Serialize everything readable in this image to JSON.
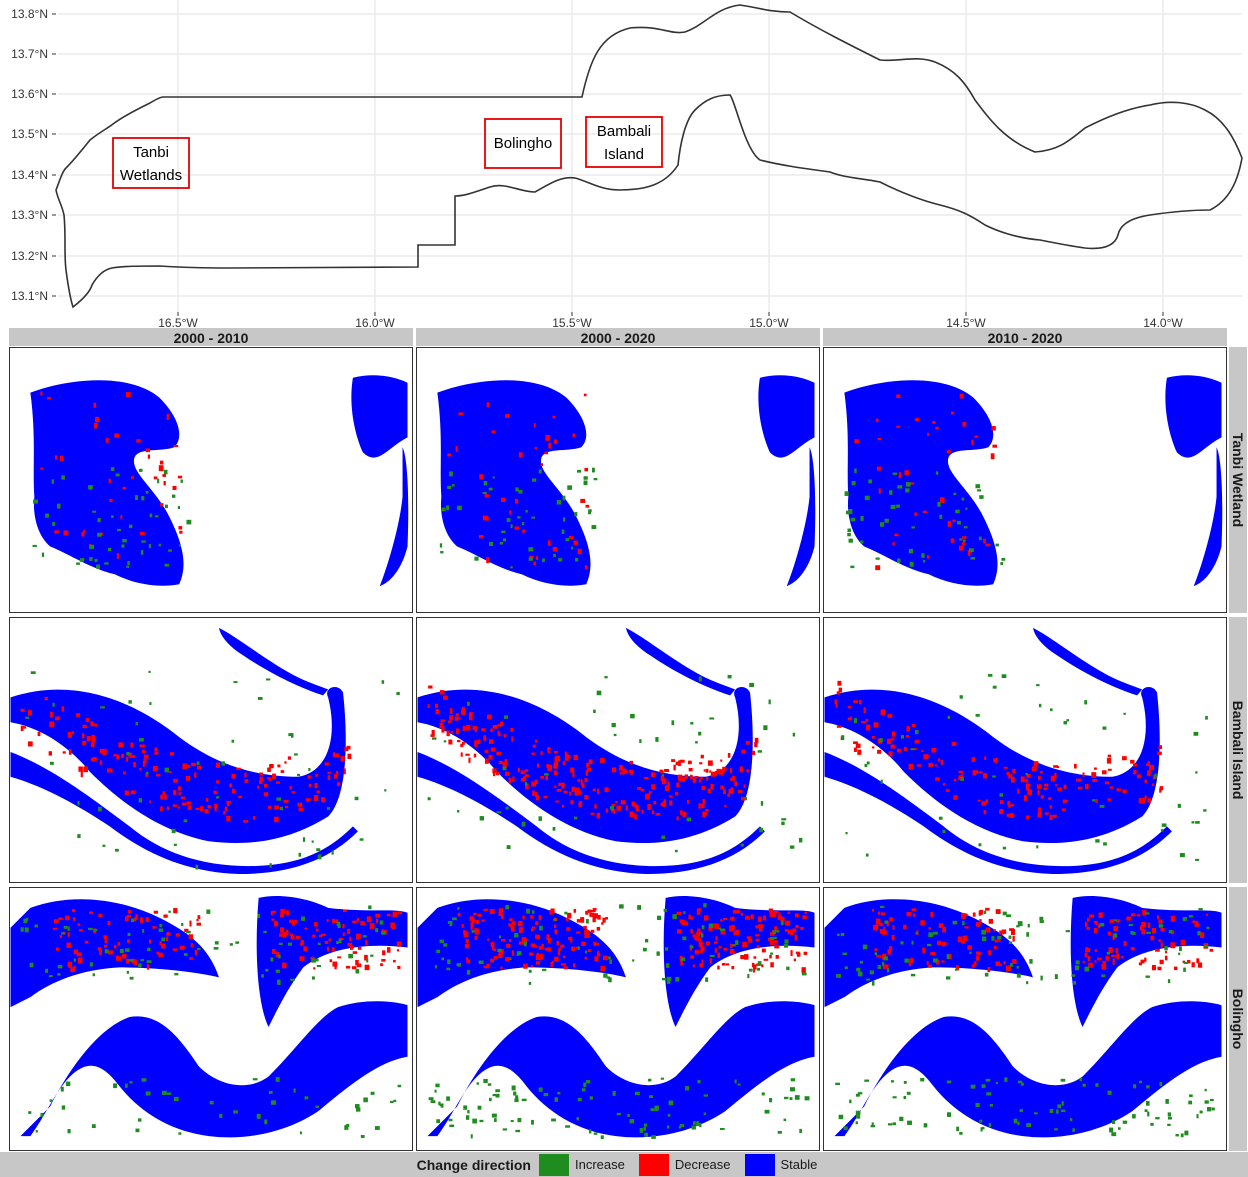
{
  "overview_map": {
    "y_axis_labels": [
      "13.8°N",
      "13.7°N",
      "13.6°N",
      "13.5°N",
      "13.4°N",
      "13.3°N",
      "13.2°N",
      "13.1°N"
    ],
    "x_axis_labels": [
      "16.5°W",
      "16.0°W",
      "15.5°W",
      "15.0°W",
      "14.5°W",
      "14.0°W"
    ],
    "sites": [
      {
        "line1": "Tanbi",
        "line2": "Wetlands"
      },
      {
        "line1": "Bolingho",
        "line2": ""
      },
      {
        "line1": "Bambali",
        "line2": "Island"
      }
    ],
    "box_color": "#e60000",
    "outline_color": "#333333",
    "grid_color": "#ebebeb"
  },
  "facets": {
    "columns": [
      "2000 - 2010",
      "2000 - 2020",
      "2010 - 2020"
    ],
    "rows": [
      "Tanbi Wetland",
      "Bambali Island",
      "Bolingho"
    ]
  },
  "legend": {
    "title": "Change direction",
    "items": [
      {
        "label": "Increase",
        "color": "#1f8c1f"
      },
      {
        "label": "Decrease",
        "color": "#ff0000"
      },
      {
        "label": "Stable",
        "color": "#0000ff"
      }
    ]
  }
}
